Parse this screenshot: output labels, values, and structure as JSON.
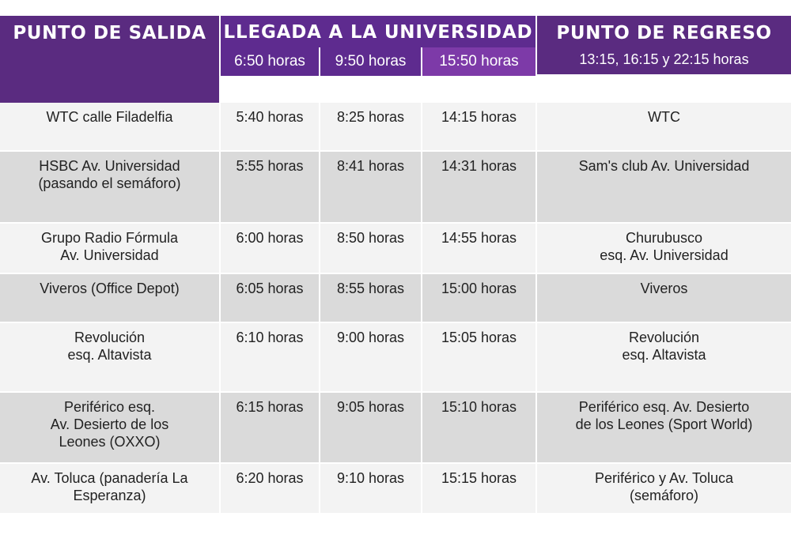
{
  "header": {
    "departure": "PUNTO DE SALIDA",
    "arrival": "LLEGADA A LA UNIVERSIDAD",
    "arrival_times": [
      "6:50 horas",
      "9:50 horas",
      "15:50 horas"
    ],
    "return_title": "PUNTO DE REGRESO",
    "return_times": "13:15, 16:15 y 22:15 horas"
  },
  "rows": [
    {
      "departure": "WTC calle Filadelfia",
      "t1": "5:40 horas",
      "t2": "8:25 horas",
      "t3": "14:15 horas",
      "return": "WTC"
    },
    {
      "departure": "HSBC Av. Universidad\n(pasando el semáforo)",
      "t1": "5:55 horas",
      "t2": "8:41 horas",
      "t3": "14:31 horas",
      "return": "Sam's club Av. Universidad"
    },
    {
      "departure": "Grupo Radio Fórmula\nAv. Universidad",
      "t1": "6:00 horas",
      "t2": "8:50 horas",
      "t3": "14:55 horas",
      "return": "Churubusco\nesq. Av. Universidad"
    },
    {
      "departure": "Viveros (Office Depot)",
      "t1": "6:05 horas",
      "t2": "8:55 horas",
      "t3": "15:00 horas",
      "return": "Viveros"
    },
    {
      "departure": "Revolución\nesq.  Altavista",
      "t1": "6:10 horas",
      "t2": "9:00 horas",
      "t3": "15:05 horas",
      "return": "Revolución\nesq. Altavista"
    },
    {
      "departure": "Periférico esq.\nAv. Desierto de los\nLeones (OXXO)",
      "t1": "6:15 horas",
      "t2": "9:05 horas",
      "t3": "15:10 horas",
      "return": "Periférico esq. Av. Desierto\nde los Leones (Sport World)"
    },
    {
      "departure": "Av. Toluca (panadería La\nEsperanza)",
      "t1": "6:20 horas",
      "t2": "9:10 horas",
      "t3": "15:15 horas",
      "return": "Periférico y Av. Toluca\n(semáforo)"
    }
  ]
}
